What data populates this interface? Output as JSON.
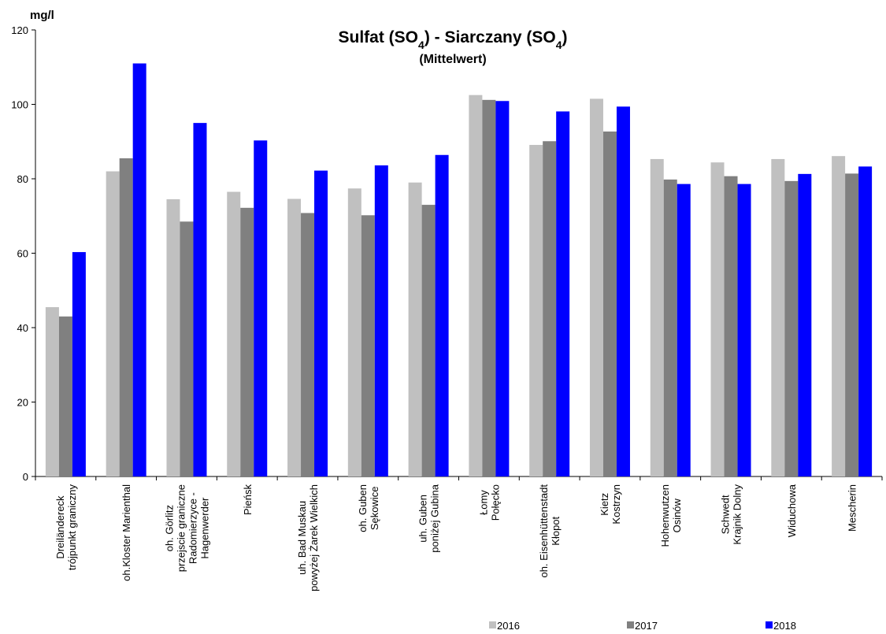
{
  "chart_data": {
    "type": "bar",
    "title": "Sulfat (SO4) - Siarczany (SO4)",
    "subtitle": "(Mittelwert)",
    "y_label": "mg/l",
    "categories": [
      "Dreiländereck\ntrójpunkt graniczny",
      "oh.Kloster Marienthal",
      "oh. Görlitz\nprzejscie graniczne\nRadomierzyce -\nHagenwerder",
      "Pieńsk",
      "uh. Bad Muskau\npowyżej Żarek Wielkich",
      "oh. Guben\nSękowice",
      "uh. Guben\nponiżej Gubina",
      "Łomy\nPołęcko",
      "oh. Eisenhüttenstadt\nKłopot",
      "Kietz\nKostrzyn",
      "Hohenwutzen\nOsinów",
      "Schwedt\nKrajnik Dolny",
      "Widuchowa",
      "Mescherin"
    ],
    "series": [
      {
        "name": "2016",
        "color": "#c0c0c0",
        "values": [
          45.5,
          82,
          74.5,
          76.5,
          74.6,
          77.4,
          79,
          102.5,
          89.1,
          101.5,
          85.3,
          84.4,
          85.3,
          86.1
        ]
      },
      {
        "name": "2017",
        "color": "#808080",
        "values": [
          43,
          85.5,
          68.5,
          72.2,
          70.8,
          70.2,
          73,
          101.2,
          90.1,
          92.7,
          79.8,
          80.7,
          79.4,
          81.4
        ]
      },
      {
        "name": "2018",
        "color": "#0000ff",
        "values": [
          60.3,
          111,
          95,
          90.3,
          82.2,
          83.6,
          86.4,
          100.9,
          98.1,
          99.4,
          78.6,
          78.6,
          81.3,
          83.3
        ]
      }
    ],
    "ylim": [
      0,
      120
    ],
    "yticks": [
      0,
      20,
      40,
      60,
      80,
      100,
      120
    ],
    "grid": false,
    "legend": "bottom"
  }
}
